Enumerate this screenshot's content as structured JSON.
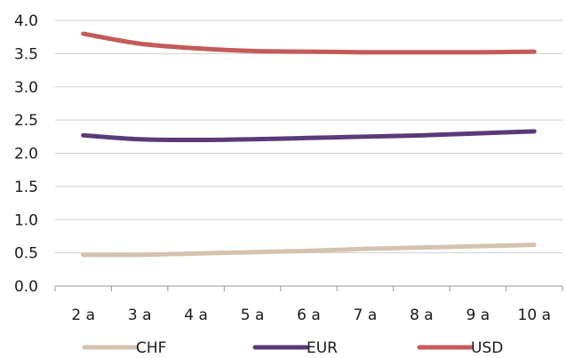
{
  "chart_data": {
    "type": "line",
    "title": "",
    "xlabel": "",
    "ylabel": "",
    "categories": [
      "2 a",
      "3 a",
      "4 a",
      "5 a",
      "6 a",
      "7 a",
      "8 a",
      "9 a",
      "10 a"
    ],
    "ylim": [
      0,
      4
    ],
    "yticks": [
      "0.0",
      "0.5",
      "1.0",
      "1.5",
      "2.0",
      "2.5",
      "3.0",
      "3.5",
      "4.0"
    ],
    "grid": true,
    "legend_position": "bottom",
    "series": [
      {
        "name": "CHF",
        "color": "#d3c2b0",
        "values": [
          0.47,
          0.47,
          0.49,
          0.51,
          0.53,
          0.56,
          0.58,
          0.6,
          0.62
        ]
      },
      {
        "name": "EUR",
        "color": "#5a3a78",
        "values": [
          2.27,
          2.21,
          2.2,
          2.21,
          2.23,
          2.25,
          2.27,
          2.3,
          2.33
        ]
      },
      {
        "name": "USD",
        "color": "#c45a5a",
        "values": [
          3.8,
          3.65,
          3.58,
          3.54,
          3.53,
          3.52,
          3.52,
          3.52,
          3.53
        ]
      }
    ]
  }
}
